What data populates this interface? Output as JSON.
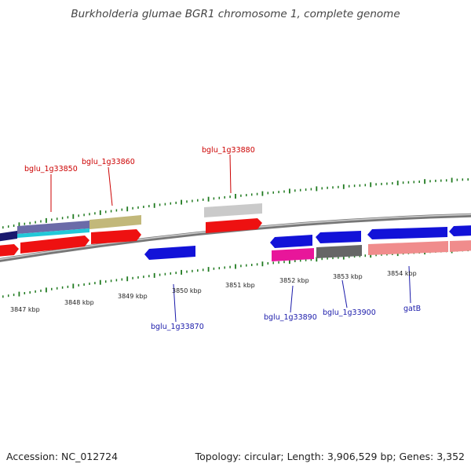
{
  "title": "Burkholderia glumae BGR1 chromosome 1, complete genome",
  "footer": {
    "accession": "Accession: NC_012724",
    "summary": "Topology: circular; Length: 3,906,529 bp; Genes: 3,352"
  },
  "colors": {
    "tick": "#1f7a1f",
    "forward_label": "#cc0000",
    "reverse_label": "#1a1aaa",
    "backbone": "#8c8c8c"
  },
  "kbp_labels": [
    "3847 kbp",
    "3848 kbp",
    "3849 kbp",
    "3850 kbp",
    "3851 kbp",
    "3852 kbp",
    "3853 kbp",
    "3854 kbp"
  ],
  "gene_labels": {
    "g33850": "bglu_1g33850",
    "g33860": "bglu_1g33860",
    "g33880": "bglu_1g33880",
    "g33870": "bglu_1g33870",
    "g33890": "bglu_1g33890",
    "g33900": "bglu_1g33900",
    "gatB": "gatB"
  }
}
